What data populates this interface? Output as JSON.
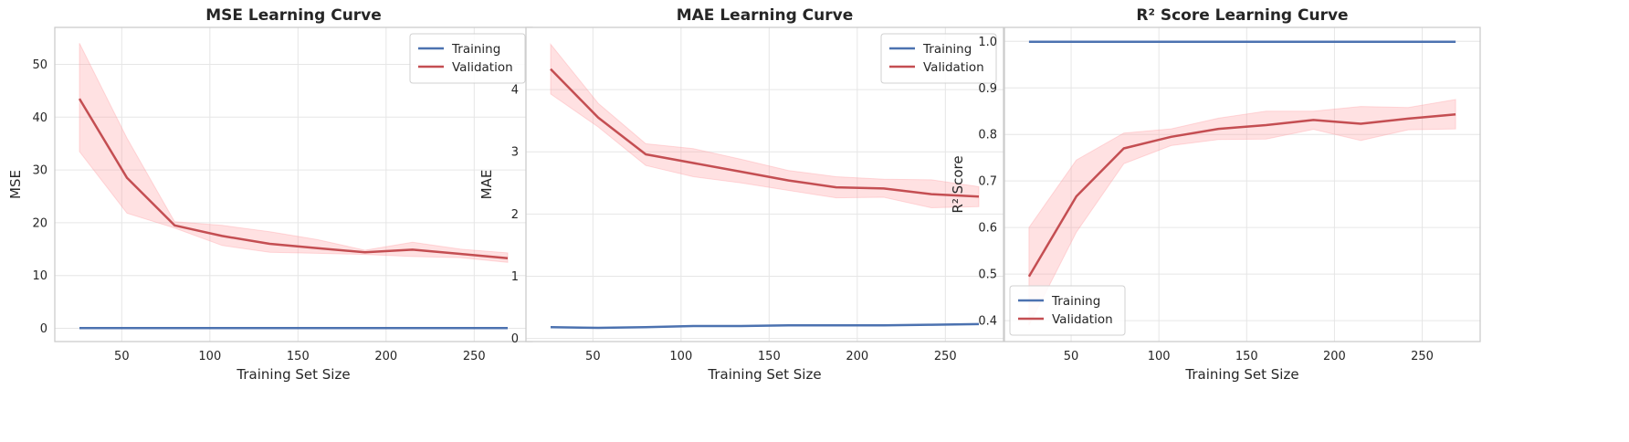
{
  "chart_data": [
    {
      "type": "line",
      "title": "MSE Learning Curve",
      "xlabel": "Training Set Size",
      "ylabel": "MSE",
      "xlim": [
        12,
        283
      ],
      "ylim": [
        -2.5,
        57
      ],
      "xticks": [
        50,
        100,
        150,
        200,
        250
      ],
      "yticks": [
        0,
        10,
        20,
        30,
        40,
        50
      ],
      "grid": true,
      "legend_position": "top-right",
      "x": [
        26,
        53,
        80,
        107,
        134,
        161,
        188,
        215,
        242,
        269
      ],
      "series": [
        {
          "name": "Training",
          "color": "#4c72b0",
          "values": [
            0.05,
            0.05,
            0.05,
            0.05,
            0.05,
            0.05,
            0.05,
            0.05,
            0.05,
            0.05
          ]
        },
        {
          "name": "Validation",
          "color": "#c44e52",
          "values": [
            43.5,
            28.5,
            19.5,
            17.5,
            16.0,
            15.2,
            14.4,
            14.9,
            14.1,
            13.3
          ],
          "band_upper": [
            54.0,
            36.0,
            20.2,
            19.5,
            18.3,
            16.8,
            14.8,
            16.3,
            15.0,
            14.3
          ],
          "band_lower": [
            33.5,
            21.8,
            19.0,
            15.7,
            14.4,
            14.2,
            14.0,
            13.6,
            13.4,
            12.5
          ],
          "band_color": "#ff9aa0"
        }
      ]
    },
    {
      "type": "line",
      "title": "MAE Learning Curve",
      "xlabel": "Training Set Size",
      "ylabel": "MAE",
      "xlim": [
        12,
        283
      ],
      "ylim": [
        -0.05,
        5.0
      ],
      "xticks": [
        50,
        100,
        150,
        200,
        250
      ],
      "yticks": [
        0,
        1,
        2,
        3,
        4
      ],
      "grid": true,
      "legend_position": "top-right",
      "x": [
        26,
        53,
        80,
        107,
        134,
        161,
        188,
        215,
        242,
        269
      ],
      "series": [
        {
          "name": "Training",
          "color": "#4c72b0",
          "values": [
            0.18,
            0.17,
            0.18,
            0.2,
            0.2,
            0.21,
            0.21,
            0.21,
            0.22,
            0.23
          ]
        },
        {
          "name": "Validation",
          "color": "#c44e52",
          "values": [
            4.33,
            3.55,
            2.96,
            2.82,
            2.68,
            2.54,
            2.43,
            2.41,
            2.32,
            2.28
          ],
          "band_upper": [
            4.73,
            3.78,
            3.13,
            3.05,
            2.88,
            2.7,
            2.6,
            2.56,
            2.55,
            2.44
          ],
          "band_lower": [
            3.93,
            3.4,
            2.78,
            2.6,
            2.5,
            2.38,
            2.26,
            2.27,
            2.1,
            2.12
          ],
          "band_color": "#ff9aa0"
        }
      ]
    },
    {
      "type": "line",
      "title": "R² Score Learning Curve",
      "xlabel": "Training Set Size",
      "ylabel": "R² Score",
      "xlim": [
        12,
        283
      ],
      "ylim": [
        0.355,
        1.03
      ],
      "xticks": [
        50,
        100,
        150,
        200,
        250
      ],
      "yticks": [
        0.4,
        0.5,
        0.6,
        0.7,
        0.8,
        0.9,
        1.0
      ],
      "ytick_labels": [
        "0.4",
        "0.5",
        "0.6",
        "0.7",
        "0.8",
        "0.9",
        "1.0"
      ],
      "grid": true,
      "legend_position": "bottom-left",
      "x": [
        26,
        53,
        80,
        107,
        134,
        161,
        188,
        215,
        242,
        269
      ],
      "series": [
        {
          "name": "Training",
          "color": "#4c72b0",
          "values": [
            0.999,
            0.999,
            0.999,
            0.999,
            0.999,
            0.999,
            0.999,
            0.999,
            0.999,
            0.999
          ]
        },
        {
          "name": "Validation",
          "color": "#c44e52",
          "values": [
            0.495,
            0.667,
            0.77,
            0.795,
            0.812,
            0.82,
            0.831,
            0.823,
            0.834,
            0.843
          ],
          "band_upper": [
            0.6,
            0.745,
            0.803,
            0.812,
            0.835,
            0.85,
            0.85,
            0.86,
            0.858,
            0.875
          ],
          "band_lower": [
            0.39,
            0.59,
            0.737,
            0.776,
            0.789,
            0.79,
            0.811,
            0.787,
            0.81,
            0.812
          ],
          "band_color": "#ff9aa0"
        }
      ]
    }
  ]
}
